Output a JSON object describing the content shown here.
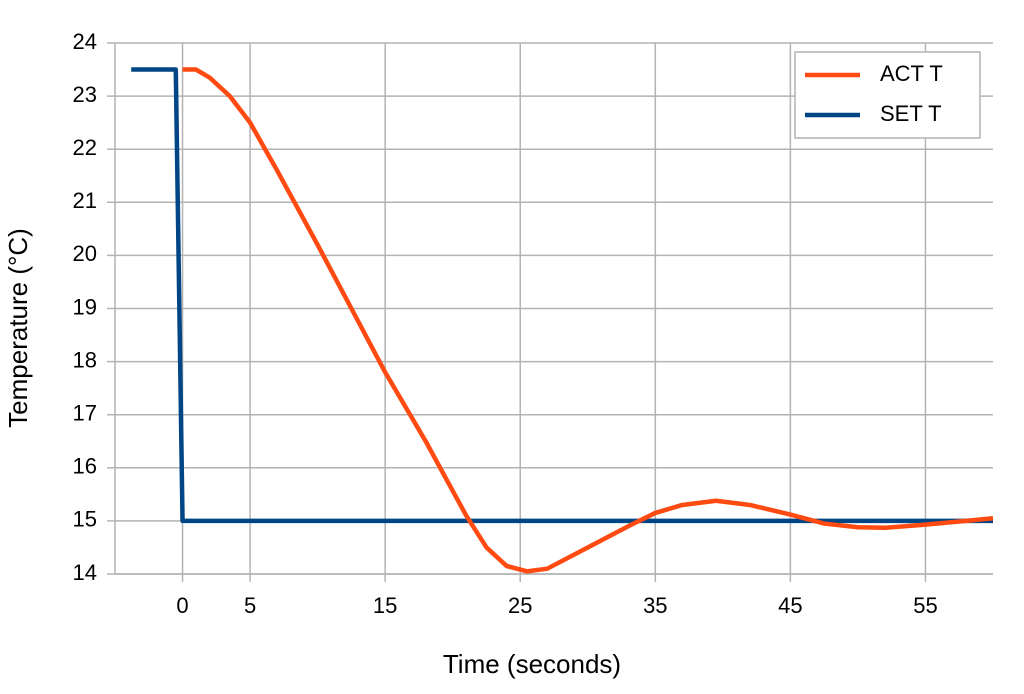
{
  "chart_data": {
    "type": "line",
    "x_label": "Time (seconds)",
    "y_label": "Temperature (°C)",
    "xlim": [
      -5,
      60
    ],
    "ylim": [
      14,
      24
    ],
    "xticks": [
      0,
      5,
      15,
      25,
      35,
      45,
      55
    ],
    "yticks": [
      14,
      15,
      16,
      17,
      18,
      19,
      20,
      21,
      22,
      23,
      24
    ],
    "grid": true,
    "legend": "upper right",
    "series": [
      {
        "name": "ACT T",
        "color": "#ff4a12",
        "x": [
          0,
          1,
          2,
          3.5,
          5,
          7,
          10,
          12.5,
          15,
          18,
          19.5,
          21,
          22.5,
          24,
          25.5,
          27,
          30,
          33,
          35,
          37,
          39.5,
          42,
          45,
          47.5,
          50,
          52,
          55,
          58,
          60
        ],
        "values": [
          23.5,
          23.5,
          23.35,
          23.0,
          22.5,
          21.6,
          20.2,
          19.0,
          17.8,
          16.5,
          15.8,
          15.1,
          14.5,
          14.15,
          14.05,
          14.1,
          14.5,
          14.9,
          15.15,
          15.3,
          15.38,
          15.3,
          15.12,
          14.95,
          14.88,
          14.87,
          14.93,
          15.0,
          15.05
        ]
      },
      {
        "name": "SET T",
        "color": "#004586",
        "x": [
          -3.8,
          -0.5,
          0,
          60
        ],
        "values": [
          23.5,
          23.5,
          15,
          15
        ]
      }
    ]
  }
}
